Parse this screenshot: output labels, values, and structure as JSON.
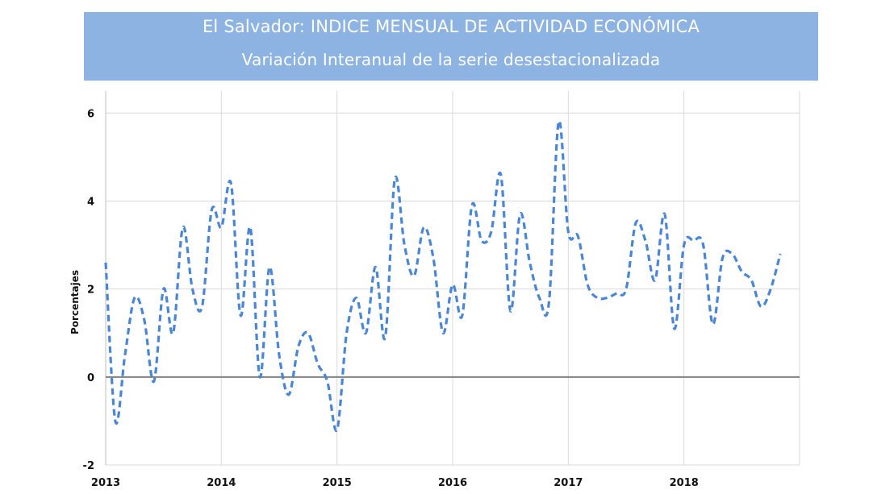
{
  "header": {
    "title": "El Salvador: INDICE MENSUAL DE ACTIVIDAD ECONÓMICA",
    "subtitle": "Variación Interanual de la serie desestacionalizada"
  },
  "colors": {
    "header_bg": "#8db3e2",
    "line": "#4a86d6",
    "grid": "#d9d9d9",
    "zero_line": "#808080"
  },
  "chart_data": {
    "type": "line",
    "title": "El Salvador: INDICE MENSUAL DE ACTIVIDAD ECONÓMICA",
    "subtitle": "Variación Interanual de la serie desestacionalizada",
    "xlabel": "",
    "ylabel": "Porcentajes",
    "ylim": [
      -2,
      6.5
    ],
    "yticks": [
      -2,
      0,
      2,
      4,
      6
    ],
    "xlim": [
      "2013-01",
      "2019-01"
    ],
    "xticks": [
      "2013",
      "2014",
      "2015",
      "2016",
      "2017",
      "2018"
    ],
    "grid": true,
    "line_style": "dashed",
    "series": [
      {
        "name": "",
        "x": [
          "2013-01",
          "2013-02",
          "2013-03",
          "2013-04",
          "2013-05",
          "2013-06",
          "2013-07",
          "2013-08",
          "2013-09",
          "2013-10",
          "2013-11",
          "2013-12",
          "2014-01",
          "2014-02",
          "2014-03",
          "2014-04",
          "2014-05",
          "2014-06",
          "2014-07",
          "2014-08",
          "2014-09",
          "2014-10",
          "2014-11",
          "2014-12",
          "2015-01",
          "2015-02",
          "2015-03",
          "2015-04",
          "2015-05",
          "2015-06",
          "2015-07",
          "2015-08",
          "2015-09",
          "2015-10",
          "2015-11",
          "2015-12",
          "2016-01",
          "2016-02",
          "2016-03",
          "2016-04",
          "2016-05",
          "2016-06",
          "2016-07",
          "2016-08",
          "2016-09",
          "2016-10",
          "2016-11",
          "2016-12",
          "2017-01",
          "2017-02",
          "2017-03",
          "2017-04",
          "2017-05",
          "2017-06",
          "2017-07",
          "2017-08",
          "2017-09",
          "2017-10",
          "2017-11",
          "2017-12",
          "2018-01",
          "2018-02",
          "2018-03",
          "2018-04",
          "2018-05",
          "2018-06",
          "2018-07",
          "2018-08",
          "2018-09",
          "2018-10",
          "2018-11"
        ],
        "values": [
          2.6,
          -1.0,
          0.5,
          1.8,
          1.3,
          -0.1,
          2.0,
          1.0,
          3.4,
          2.0,
          1.6,
          3.8,
          3.4,
          4.4,
          1.4,
          3.4,
          0.0,
          2.5,
          0.5,
          -0.4,
          0.7,
          1.0,
          0.3,
          -0.1,
          -1.2,
          1.0,
          1.8,
          1.0,
          2.5,
          0.9,
          4.5,
          3.0,
          2.3,
          3.4,
          2.7,
          1.0,
          2.1,
          1.4,
          3.9,
          3.1,
          3.3,
          4.6,
          1.5,
          3.7,
          2.6,
          1.8,
          1.7,
          5.8,
          3.3,
          3.2,
          2.1,
          1.8,
          1.8,
          1.9,
          2.0,
          3.5,
          3.1,
          2.2,
          3.7,
          1.1,
          3.0,
          3.1,
          3.0,
          1.2,
          2.7,
          2.8,
          2.4,
          2.2,
          1.6,
          2.0,
          2.8
        ]
      }
    ]
  }
}
